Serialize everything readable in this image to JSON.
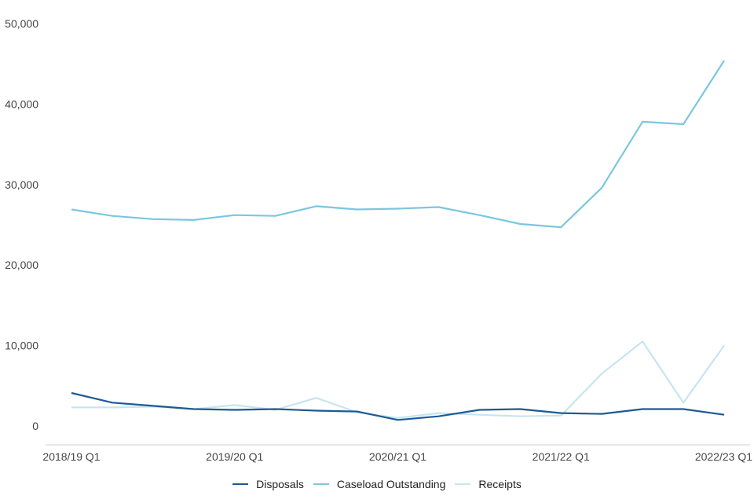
{
  "chart_data": {
    "type": "line",
    "title": "",
    "xlabel": "",
    "ylabel": "",
    "ylim": [
      0,
      50000
    ],
    "yticks": [
      0,
      10000,
      20000,
      30000,
      40000,
      50000
    ],
    "ytick_labels": [
      "0",
      "10,000",
      "20,000",
      "30,000",
      "40,000",
      "50,000"
    ],
    "x": [
      "2018/19 Q1",
      "2018/19 Q2",
      "2018/19 Q3",
      "2018/19 Q4",
      "2019/20 Q1",
      "2019/20 Q2",
      "2019/20 Q3",
      "2019/20 Q4",
      "2020/21 Q1",
      "2020/21 Q2",
      "2020/21 Q3",
      "2020/21 Q4",
      "2021/22 Q1",
      "2021/22 Q2",
      "2021/22 Q3",
      "2021/22 Q4",
      "2022/23 Q1"
    ],
    "xtick_labels": [
      "2018/19 Q1",
      "2019/20 Q1",
      "2020/21 Q1",
      "2021/22 Q1",
      "2022/23 Q1"
    ],
    "xtick_indices": [
      0,
      4,
      8,
      12,
      16
    ],
    "grid": false,
    "legend_position": "bottom",
    "series": [
      {
        "name": "Disposals",
        "color": "#1d5a96",
        "values": [
          4100,
          2900,
          2500,
          2100,
          2000,
          2100,
          1900,
          1800,
          750,
          1200,
          2000,
          2100,
          1600,
          1500,
          2100,
          2100,
          1400
        ]
      },
      {
        "name": "Caseload Outstanding",
        "color": "#7ac7e0",
        "values": [
          26900,
          26100,
          25700,
          25600,
          26200,
          26100,
          27300,
          26900,
          27000,
          27200,
          26200,
          25100,
          24700,
          29600,
          37800,
          37500,
          45400
        ]
      },
      {
        "name": "Receipts",
        "color": "#c6e5ef",
        "values": [
          2300,
          2300,
          2400,
          2100,
          2600,
          2000,
          3500,
          1700,
          1000,
          1600,
          1400,
          1200,
          1300,
          6500,
          10500,
          2900,
          10000
        ]
      }
    ]
  },
  "legend": {
    "items": [
      {
        "label": "Disposals",
        "color": "#1d5a96"
      },
      {
        "label": "Caseload Outstanding",
        "color": "#7ac7e0"
      },
      {
        "label": "Receipts",
        "color": "#c6e5ef"
      }
    ]
  }
}
